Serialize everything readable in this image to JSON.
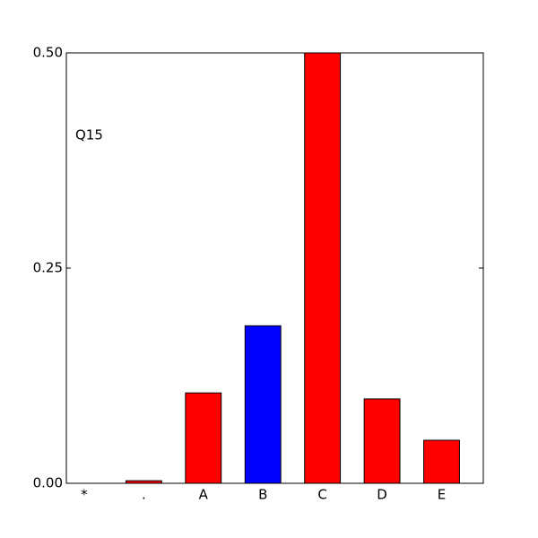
{
  "chart_data": {
    "type": "bar",
    "annotation": "Q15",
    "categories": [
      "*",
      ".",
      "A",
      "B",
      "C",
      "D",
      "E"
    ],
    "values": [
      0,
      0.003,
      0.105,
      0.183,
      0.5,
      0.098,
      0.05
    ],
    "colors": [
      "#ff0000",
      "#ff0000",
      "#ff0000",
      "#0000ff",
      "#ff0000",
      "#ff0000",
      "#ff0000"
    ],
    "ylim": [
      0,
      0.5
    ],
    "yticks": [
      {
        "value": 0,
        "label": "0.00"
      },
      {
        "value": 0.25,
        "label": "0.25"
      },
      {
        "value": 0.5,
        "label": "0.50"
      }
    ],
    "grid": false
  }
}
